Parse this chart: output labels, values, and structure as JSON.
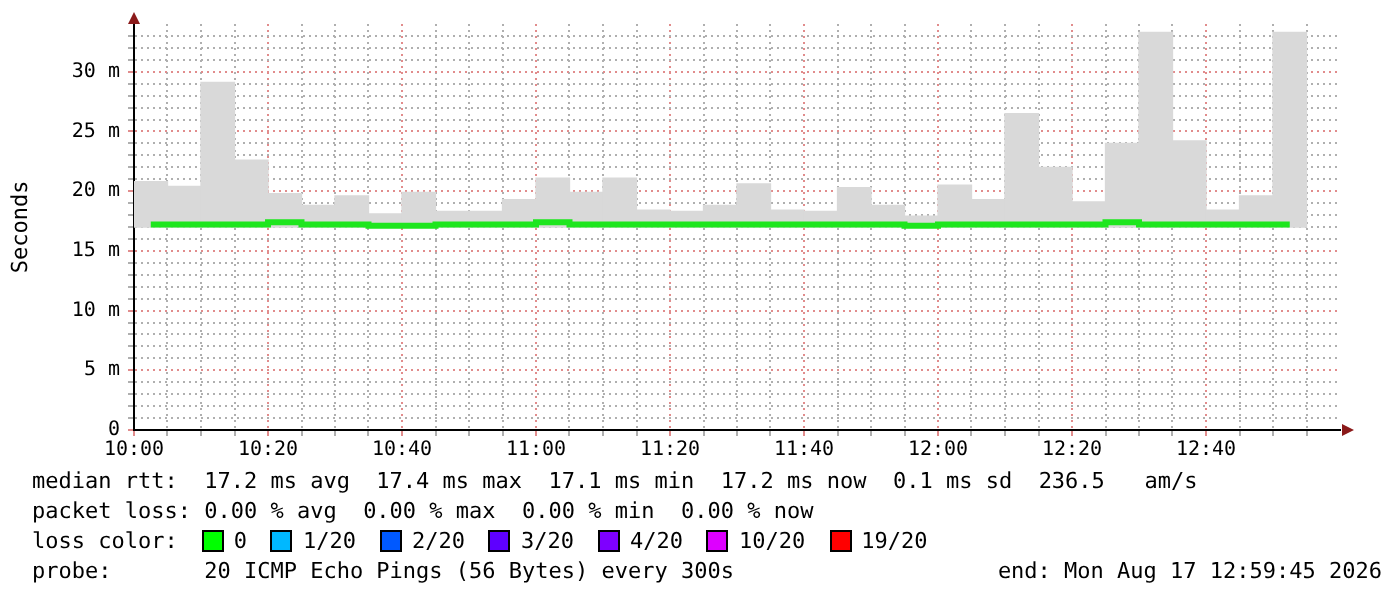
{
  "chart_data": {
    "type": "bar",
    "ylabel": "Seconds",
    "x": [
      10.0417,
      10.125,
      10.2083,
      10.2917,
      10.375,
      10.4583,
      10.5417,
      10.625,
      10.7083,
      10.7917,
      10.875,
      10.9583,
      11.0417,
      11.125,
      11.2083,
      11.2917,
      11.375,
      11.4583,
      11.5417,
      11.625,
      11.7083,
      11.7917,
      11.875,
      11.9583,
      12.0417,
      12.125,
      12.2083,
      12.2917,
      12.375,
      12.4583,
      12.5417,
      12.625,
      12.7083,
      12.7917,
      12.875
    ],
    "series": [
      {
        "color": "#d9d9d9",
        "base": [
          17,
          17,
          17,
          17,
          17,
          17,
          17,
          17,
          17,
          17,
          17,
          17,
          17,
          17,
          17,
          17,
          17,
          17,
          17,
          17,
          17,
          17,
          17,
          17,
          17,
          17,
          17,
          17,
          17,
          17,
          17,
          17,
          17,
          17,
          17
        ],
        "values": [
          3.8,
          3.4,
          12.1,
          5.6,
          2.8,
          1.8,
          2.6,
          1.1,
          2.9,
          1.3,
          1.3,
          2.3,
          4.1,
          2.9,
          4.1,
          1.4,
          1.3,
          1.8,
          3.6,
          1.4,
          1.3,
          3.3,
          1.8,
          0.9,
          3.5,
          2.3,
          9.5,
          5.0,
          2.1,
          7.0,
          16.3,
          7.2,
          1.4,
          2.6,
          16.3
        ]
      },
      {
        "type": "step",
        "color": "#1ee61e",
        "values": [
          17.2,
          17.2,
          17.2,
          17.2,
          17.4,
          17.2,
          17.2,
          17.1,
          17.1,
          17.2,
          17.2,
          17.2,
          17.4,
          17.2,
          17.2,
          17.2,
          17.2,
          17.2,
          17.2,
          17.2,
          17.2,
          17.2,
          17.2,
          17.1,
          17.2,
          17.2,
          17.2,
          17.2,
          17.2,
          17.4,
          17.2,
          17.2,
          17.2,
          17.2,
          17.2
        ]
      }
    ],
    "xlim": [
      10,
      13
    ],
    "xticks": [
      {
        "value": 10,
        "label": "10:00"
      },
      {
        "value": 10.0833,
        "label": null
      },
      {
        "value": 10.1667,
        "label": null
      },
      {
        "value": 10.25,
        "label": null
      },
      {
        "value": 10.3333,
        "label": "10:20"
      },
      {
        "value": 10.4167,
        "label": null
      },
      {
        "value": 10.5,
        "label": null
      },
      {
        "value": 10.5833,
        "label": null
      },
      {
        "value": 10.6667,
        "label": "10:40"
      },
      {
        "value": 10.75,
        "label": null
      },
      {
        "value": 10.8333,
        "label": null
      },
      {
        "value": 10.9167,
        "label": null
      },
      {
        "value": 11,
        "label": "11:00"
      },
      {
        "value": 11.0833,
        "label": null
      },
      {
        "value": 11.1667,
        "label": null
      },
      {
        "value": 11.25,
        "label": null
      },
      {
        "value": 11.3333,
        "label": "11:20"
      },
      {
        "value": 11.4167,
        "label": null
      },
      {
        "value": 11.5,
        "label": null
      },
      {
        "value": 11.5833,
        "label": null
      },
      {
        "value": 11.6667,
        "label": "11:40"
      },
      {
        "value": 11.75,
        "label": null
      },
      {
        "value": 11.8333,
        "label": null
      },
      {
        "value": 11.9167,
        "label": null
      },
      {
        "value": 12,
        "label": "12:00"
      },
      {
        "value": 12.0833,
        "label": null
      },
      {
        "value": 12.1667,
        "label": null
      },
      {
        "value": 12.25,
        "label": null
      },
      {
        "value": 12.3333,
        "label": "12:20"
      },
      {
        "value": 12.4167,
        "label": null
      },
      {
        "value": 12.5,
        "label": null
      },
      {
        "value": 12.5833,
        "label": null
      },
      {
        "value": 12.6667,
        "label": "12:40"
      },
      {
        "value": 12.75,
        "label": null
      },
      {
        "value": 12.8333,
        "label": null
      },
      {
        "value": 12.9167,
        "label": null
      }
    ],
    "ylim": [
      0,
      34
    ],
    "yticks": [
      0,
      {
        "value": 1,
        "label": null
      },
      {
        "value": 2,
        "label": null
      },
      {
        "value": 3,
        "label": null
      },
      {
        "value": 4,
        "label": null
      },
      {
        "value": 5,
        "label": "5 m"
      },
      {
        "value": 6,
        "label": null
      },
      {
        "value": 7,
        "label": null
      },
      {
        "value": 8,
        "label": null
      },
      {
        "value": 9,
        "label": null
      },
      {
        "value": 10,
        "label": "10 m"
      },
      {
        "value": 11,
        "label": null
      },
      {
        "value": 12,
        "label": null
      },
      {
        "value": 13,
        "label": null
      },
      {
        "value": 14,
        "label": null
      },
      {
        "value": 15,
        "label": "15 m"
      },
      {
        "value": 16,
        "label": null
      },
      {
        "value": 17,
        "label": null
      },
      {
        "value": 18,
        "label": null
      },
      {
        "value": 19,
        "label": null
      },
      {
        "value": 20,
        "label": "20 m"
      },
      {
        "value": 21,
        "label": null
      },
      {
        "value": 22,
        "label": null
      },
      {
        "value": 23,
        "label": null
      },
      {
        "value": 24,
        "label": null
      },
      {
        "value": 25,
        "label": "25 m"
      },
      {
        "value": 26,
        "label": null
      },
      {
        "value": 27,
        "label": null
      },
      {
        "value": 28,
        "label": null
      },
      {
        "value": 29,
        "label": null
      },
      {
        "value": 30,
        "label": "30 m"
      },
      {
        "value": 31,
        "label": null
      },
      {
        "value": 32,
        "label": null
      },
      {
        "value": 33,
        "label": null
      }
    ],
    "grid": true,
    "annotations": [
      "median rtt:  17.2 ms avg  17.4 ms max  17.1 ms min  17.2 ms now  0.1 ms sd  236.5   am/s",
      "packet loss: 0.00 % avg  0.00 % max  0.00 % min  0.00 % now",
      "loss color:",
      "0",
      "1/20",
      "2/20",
      "3/20",
      "4/20",
      "10/20",
      "19/20",
      "probe:       20 ICMP Echo Pings (56 Bytes) every 300s",
      "end: Mon Aug 17 12:59:45 2026"
    ]
  }
}
